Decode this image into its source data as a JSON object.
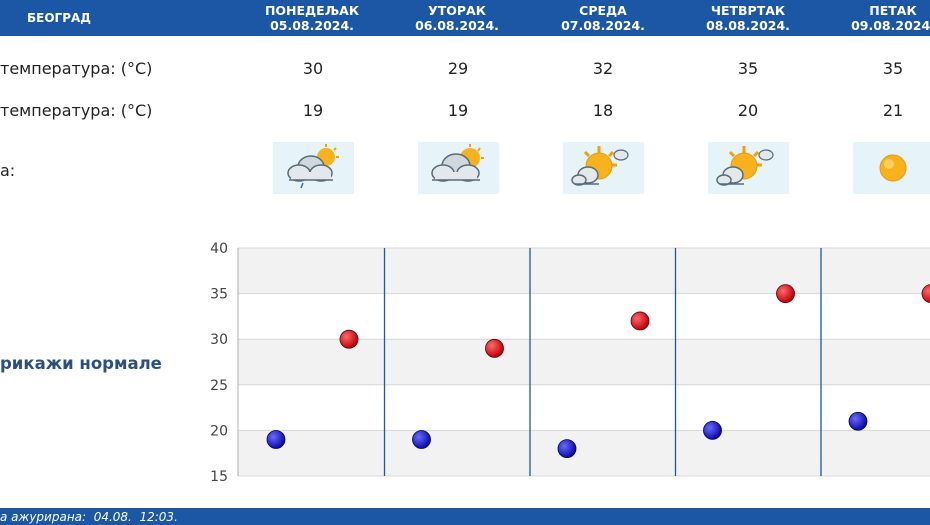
{
  "header": {
    "city": "БЕОГРАД"
  },
  "days": [
    {
      "name": "ПОНЕДЕЉАК",
      "date": "05.08.2024.",
      "max": "30",
      "min": "19",
      "icon": "cloud-sun-rain-icon"
    },
    {
      "name": "УТОРАК",
      "date": "06.08.2024.",
      "max": "29",
      "min": "19",
      "icon": "cloud-sun-icon"
    },
    {
      "name": "СРЕДА",
      "date": "07.08.2024.",
      "max": "32",
      "min": "18",
      "icon": "sun-cloud-icon"
    },
    {
      "name": "ЧЕТВРТАК",
      "date": "08.08.2024.",
      "max": "35",
      "min": "20",
      "icon": "sun-cloud-icon"
    },
    {
      "name": "ПЕТАК",
      "date": "09.08.2024.",
      "max": "35",
      "min": "21",
      "icon": "sun-icon"
    }
  ],
  "labels": {
    "max_row": "температура: (°C)",
    "min_row": "температура: (°C)",
    "weather_row": "а:",
    "normals": "рикажи нормале"
  },
  "footer": {
    "text": "а ажурирана:  04.08.  12:03."
  },
  "colors": {
    "header": "#1b57a4",
    "max_dot": "#c0000a",
    "min_dot": "#0a0aa8",
    "icon_bg": "#e6f3f8"
  },
  "chart_data": {
    "type": "scatter",
    "categories": [
      "05.08.2024.",
      "06.08.2024.",
      "07.08.2024.",
      "08.08.2024.",
      "09.08.2024."
    ],
    "series": [
      {
        "values": [
          30,
          29,
          32,
          35,
          35
        ],
        "color": "#c0000a"
      },
      {
        "values": [
          19,
          19,
          18,
          20,
          21
        ],
        "color": "#0a0aa8"
      }
    ],
    "yticks": [
      "40",
      "35",
      "30",
      "25",
      "20",
      "15"
    ],
    "ylim": [
      15,
      40
    ],
    "grid": true
  }
}
